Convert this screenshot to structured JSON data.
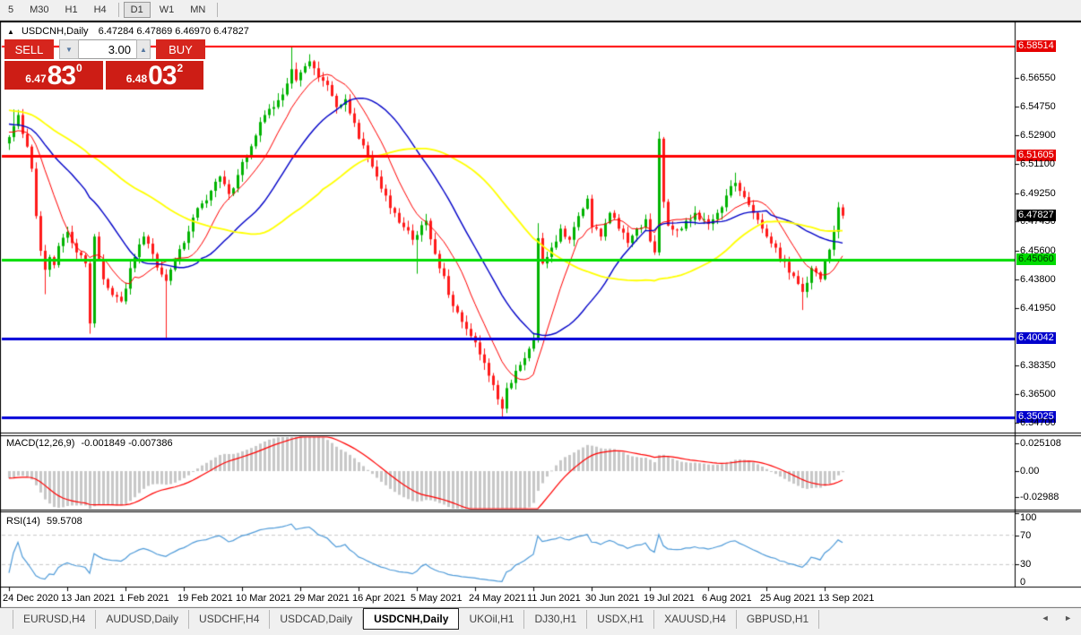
{
  "window": {
    "bg": "#f0f0f0",
    "chart_bg": "#ffffff"
  },
  "toolbar": {
    "items": [
      {
        "label": "5",
        "active": false
      },
      {
        "label": "M30",
        "active": false
      },
      {
        "label": "H1",
        "active": false
      },
      {
        "label": "H4",
        "active": false
      },
      {
        "label": "D1",
        "active": true
      },
      {
        "label": "W1",
        "active": false
      },
      {
        "label": "MN",
        "active": false
      }
    ]
  },
  "chart_header": {
    "collapse_icon": "▲",
    "title": "USDCNH,Daily",
    "ohlc_text": "6.47284 6.47869 6.46970 6.47827"
  },
  "trade_panel": {
    "sell_label": "SELL",
    "buy_label": "BUY",
    "volume": "3.00",
    "volume_down_icon": "▼",
    "volume_up_icon": "▲",
    "sell_price": {
      "prefix": "6.47",
      "big": "83",
      "sup": "0"
    },
    "buy_price": {
      "prefix": "6.48",
      "big": "03",
      "sup": "2"
    },
    "button_color": "#d6251d",
    "box_color": "#cd1d15"
  },
  "chart_data": {
    "type": "candlestick",
    "symbol": "USDCNH",
    "timeframe": "Daily",
    "ohlc": {
      "open": 6.47284,
      "high": 6.47869,
      "low": 6.4697,
      "close": 6.47827
    },
    "bars_total": 187,
    "price_range": {
      "top": 6.6001,
      "bottom": 6.342
    },
    "price_axis_ticks": [
      "6.56550",
      "6.54750",
      "6.52900",
      "6.51100",
      "6.49250",
      "6.47450",
      "6.45600",
      "6.43800",
      "6.41950",
      "6.38350",
      "6.36500",
      "6.34700"
    ],
    "hlines": [
      {
        "price": 6.58514,
        "label": "6.58514",
        "color": "#ff0000",
        "label_bg": "#e60000",
        "label_fg": "#ffffff",
        "width": 2
      },
      {
        "price": 6.51605,
        "label": "6.51605",
        "color": "#ff0000",
        "label_bg": "#e60000",
        "label_fg": "#ffffff",
        "width": 3
      },
      {
        "price": 6.4506,
        "label": "6.45060",
        "color": "#00dc00",
        "label_bg": "#00dc00",
        "label_fg": "#003300",
        "width": 3
      },
      {
        "price": 6.40042,
        "label": "6.40042",
        "color": "#0000d8",
        "label_bg": "#0000cc",
        "label_fg": "#ffffff",
        "width": 3
      },
      {
        "price": 6.35025,
        "label": "6.35025",
        "color": "#0000d8",
        "label_bg": "#0000cc",
        "label_fg": "#ffffff",
        "width": 3
      }
    ],
    "current_price": {
      "value": 6.47827,
      "label": "6.47827",
      "label_bg": "#000000",
      "label_fg": "#ffffff"
    },
    "x_axis": [
      {
        "bar": 0,
        "label": "24 Dec 2020"
      },
      {
        "bar": 13,
        "label": "13 Jan 2021"
      },
      {
        "bar": 26,
        "label": "1 Feb 2021"
      },
      {
        "bar": 39,
        "label": "19 Feb 2021"
      },
      {
        "bar": 52,
        "label": "10 Mar 2021"
      },
      {
        "bar": 65,
        "label": "29 Mar 2021"
      },
      {
        "bar": 78,
        "label": "16 Apr 2021"
      },
      {
        "bar": 91,
        "label": "5 May 2021"
      },
      {
        "bar": 104,
        "label": "24 May 2021"
      },
      {
        "bar": 117,
        "label": "11 Jun 2021"
      },
      {
        "bar": 130,
        "label": "30 Jun 2021"
      },
      {
        "bar": 143,
        "label": "19 Jul 2021"
      },
      {
        "bar": 156,
        "label": "6 Aug 2021"
      },
      {
        "bar": 169,
        "label": "25 Aug 2021"
      },
      {
        "bar": 182,
        "label": "13 Sep 2021"
      }
    ],
    "candle_colors": {
      "up": "#00b300",
      "down": "#ff1a1a"
    },
    "moving_averages": [
      {
        "period": 10,
        "color": "#ff0000",
        "width": 1
      },
      {
        "period": 25,
        "color": "#0000c8",
        "width": 1.4
      },
      {
        "period": 52,
        "color": "#ffff00",
        "width": 1.8
      }
    ],
    "close_anchors": [
      [
        0,
        6.528
      ],
      [
        1,
        6.535
      ],
      [
        2,
        6.542
      ],
      [
        3,
        6.53
      ],
      [
        4,
        6.522
      ],
      [
        5,
        6.508
      ],
      [
        6,
        6.478
      ],
      [
        7,
        6.456
      ],
      [
        8,
        6.444
      ],
      [
        9,
        6.452
      ],
      [
        10,
        6.447
      ],
      [
        11,
        6.459
      ],
      [
        13,
        6.468
      ],
      [
        15,
        6.455
      ],
      [
        17,
        6.448
      ],
      [
        18,
        6.41
      ],
      [
        19,
        6.465
      ],
      [
        21,
        6.438
      ],
      [
        23,
        6.428
      ],
      [
        25,
        6.424
      ],
      [
        26,
        6.432
      ],
      [
        27,
        6.445
      ],
      [
        28,
        6.452
      ],
      [
        30,
        6.465
      ],
      [
        32,
        6.454
      ],
      [
        34,
        6.441
      ],
      [
        35,
        6.437
      ],
      [
        37,
        6.45
      ],
      [
        39,
        6.461
      ],
      [
        41,
        6.477
      ],
      [
        43,
        6.486
      ],
      [
        45,
        6.494
      ],
      [
        47,
        6.503
      ],
      [
        49,
        6.492
      ],
      [
        51,
        6.504
      ],
      [
        53,
        6.516
      ],
      [
        55,
        6.529
      ],
      [
        57,
        6.542
      ],
      [
        59,
        6.547
      ],
      [
        61,
        6.555
      ],
      [
        63,
        6.571
      ],
      [
        64,
        6.564
      ],
      [
        65,
        6.569
      ],
      [
        67,
        6.576
      ],
      [
        69,
        6.566
      ],
      [
        71,
        6.561
      ],
      [
        73,
        6.547
      ],
      [
        75,
        6.552
      ],
      [
        77,
        6.537
      ],
      [
        78,
        6.527
      ],
      [
        80,
        6.516
      ],
      [
        82,
        6.503
      ],
      [
        84,
        6.491
      ],
      [
        86,
        6.48
      ],
      [
        88,
        6.471
      ],
      [
        90,
        6.463
      ],
      [
        91,
        6.466
      ],
      [
        93,
        6.475
      ],
      [
        95,
        6.454
      ],
      [
        97,
        6.44
      ],
      [
        99,
        6.421
      ],
      [
        101,
        6.411
      ],
      [
        103,
        6.402
      ],
      [
        104,
        6.398
      ],
      [
        106,
        6.385
      ],
      [
        108,
        6.371
      ],
      [
        109,
        6.362
      ],
      [
        110,
        6.356
      ],
      [
        111,
        6.369
      ],
      [
        113,
        6.38
      ],
      [
        115,
        6.388
      ],
      [
        116,
        6.394
      ],
      [
        117,
        6.4
      ],
      [
        118,
        6.464
      ],
      [
        119,
        6.448
      ],
      [
        121,
        6.458
      ],
      [
        123,
        6.47
      ],
      [
        125,
        6.463
      ],
      [
        127,
        6.478
      ],
      [
        129,
        6.489
      ],
      [
        130,
        6.471
      ],
      [
        132,
        6.465
      ],
      [
        134,
        6.48
      ],
      [
        136,
        6.47
      ],
      [
        138,
        6.461
      ],
      [
        140,
        6.47
      ],
      [
        142,
        6.476
      ],
      [
        143,
        6.462
      ],
      [
        144,
        6.455
      ],
      [
        145,
        6.527
      ],
      [
        146,
        6.487
      ],
      [
        147,
        6.472
      ],
      [
        149,
        6.469
      ],
      [
        151,
        6.475
      ],
      [
        153,
        6.48
      ],
      [
        155,
        6.476
      ],
      [
        156,
        6.473
      ],
      [
        158,
        6.48
      ],
      [
        160,
        6.491
      ],
      [
        162,
        6.499
      ],
      [
        164,
        6.49
      ],
      [
        166,
        6.48
      ],
      [
        168,
        6.47
      ],
      [
        169,
        6.465
      ],
      [
        171,
        6.458
      ],
      [
        173,
        6.449
      ],
      [
        175,
        6.44
      ],
      [
        177,
        6.43
      ],
      [
        179,
        6.445
      ],
      [
        181,
        6.438
      ],
      [
        182,
        6.45
      ],
      [
        184,
        6.468
      ],
      [
        185,
        6.4835
      ],
      [
        186,
        6.47827
      ]
    ],
    "wick_overrides": [
      {
        "bar": 1,
        "high": 6.5455
      },
      {
        "bar": 8,
        "low": 6.4285
      },
      {
        "bar": 18,
        "low": 6.4035
      },
      {
        "bar": 35,
        "low": 6.401
      },
      {
        "bar": 63,
        "high": 6.5848
      },
      {
        "bar": 67,
        "high": 6.5805
      },
      {
        "bar": 91,
        "low": 6.4415
      },
      {
        "bar": 110,
        "low": 6.3503
      },
      {
        "bar": 118,
        "high": 6.4735
      },
      {
        "bar": 145,
        "high": 6.5315
      },
      {
        "bar": 162,
        "high": 6.5055
      },
      {
        "bar": 177,
        "low": 6.4185
      },
      {
        "bar": 186,
        "high": 6.48
      }
    ],
    "macd": {
      "title": "MACD(12,26,9)",
      "values_text": "-0.001849 -0.007386",
      "fast": 12,
      "slow": 26,
      "signal_period": 9,
      "axis_labels": [
        "0.025108",
        "0.00",
        "-0.02988"
      ],
      "hist_color": "#c8c8c8",
      "signal_color": "#ff0000"
    },
    "rsi": {
      "title": "RSI(14)",
      "value_text": "59.5708",
      "period": 14,
      "axis_labels": [
        "100",
        "70",
        "30",
        "0"
      ],
      "levels": [
        70,
        30
      ],
      "line_color": "#4f9bd9",
      "level_color": "#c8c8c8"
    }
  },
  "tabs": {
    "items": [
      {
        "label": "EURUSD,H4",
        "active": false
      },
      {
        "label": "AUDUSD,Daily",
        "active": false
      },
      {
        "label": "USDCHF,H4",
        "active": false
      },
      {
        "label": "USDCAD,Daily",
        "active": false
      },
      {
        "label": "USDCNH,Daily",
        "active": true
      },
      {
        "label": "UKOil,H1",
        "active": false
      },
      {
        "label": "DJ30,H1",
        "active": false
      },
      {
        "label": "USDX,H1",
        "active": false
      },
      {
        "label": "XAUUSD,H4",
        "active": false
      },
      {
        "label": "GBPUSD,H1",
        "active": false
      }
    ],
    "prev_icon": "◄",
    "next_icon": "►"
  }
}
